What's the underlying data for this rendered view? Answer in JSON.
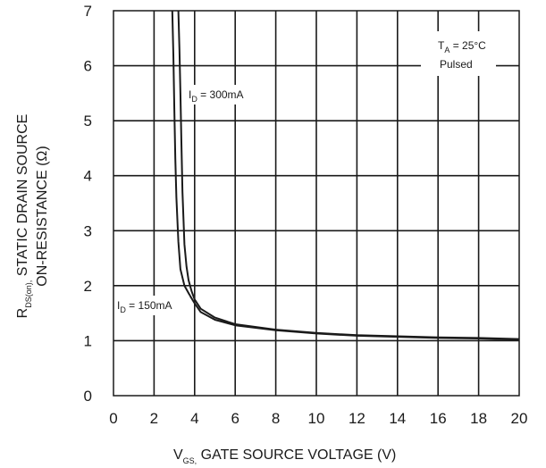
{
  "chart_data": {
    "type": "line",
    "xlim": [
      0,
      20
    ],
    "ylim": [
      0,
      7
    ],
    "x_ticks": [
      "0",
      "2",
      "4",
      "6",
      "8",
      "10",
      "12",
      "14",
      "16",
      "18",
      "20"
    ],
    "y_ticks": [
      "0",
      "1",
      "2",
      "3",
      "4",
      "5",
      "6",
      "7"
    ],
    "grid": true,
    "xlabel": {
      "main": "V",
      "sub": "GS,",
      "rest": " GATE SOURCE VOLTAGE (V)"
    },
    "ylabel": {
      "line1_main": "R",
      "line1_sub": "DS(on),",
      "line1_rest": " STATIC DRAIN SOURCE",
      "line2": "ON-RESISTANCE (Ω)"
    },
    "conditions": {
      "ta_main": "T",
      "ta_sub": "A",
      "ta_rest": " = 25°C",
      "mode": "Pulsed"
    },
    "series": [
      {
        "name_main": "I",
        "name_sub": "D",
        "name_rest": " = 300mA",
        "x": [
          3.2,
          3.25,
          3.3,
          3.35,
          3.4,
          3.5,
          3.6,
          3.7,
          3.85,
          4.0,
          4.3,
          5.0,
          6.0,
          8.0,
          10.0,
          12.0,
          14.0,
          16.0,
          18.0,
          20.0
        ],
        "y": [
          7.0,
          6.3,
          5.5,
          4.6,
          3.7,
          2.75,
          2.35,
          2.1,
          1.9,
          1.75,
          1.58,
          1.42,
          1.3,
          1.2,
          1.14,
          1.1,
          1.08,
          1.06,
          1.05,
          1.03
        ]
      },
      {
        "name_main": "I",
        "name_sub": "D",
        "name_rest": " = 150mA",
        "x": [
          2.9,
          2.95,
          3.0,
          3.05,
          3.1,
          3.2,
          3.3,
          3.5,
          3.8,
          4.0,
          4.3,
          5.0,
          6.0,
          8.0,
          10.0,
          12.0,
          14.0,
          16.0,
          18.0,
          20.0
        ],
        "y": [
          7.0,
          6.2,
          5.2,
          4.3,
          3.6,
          2.8,
          2.3,
          2.0,
          1.8,
          1.68,
          1.52,
          1.38,
          1.28,
          1.19,
          1.13,
          1.09,
          1.07,
          1.05,
          1.04,
          1.02
        ]
      }
    ]
  }
}
